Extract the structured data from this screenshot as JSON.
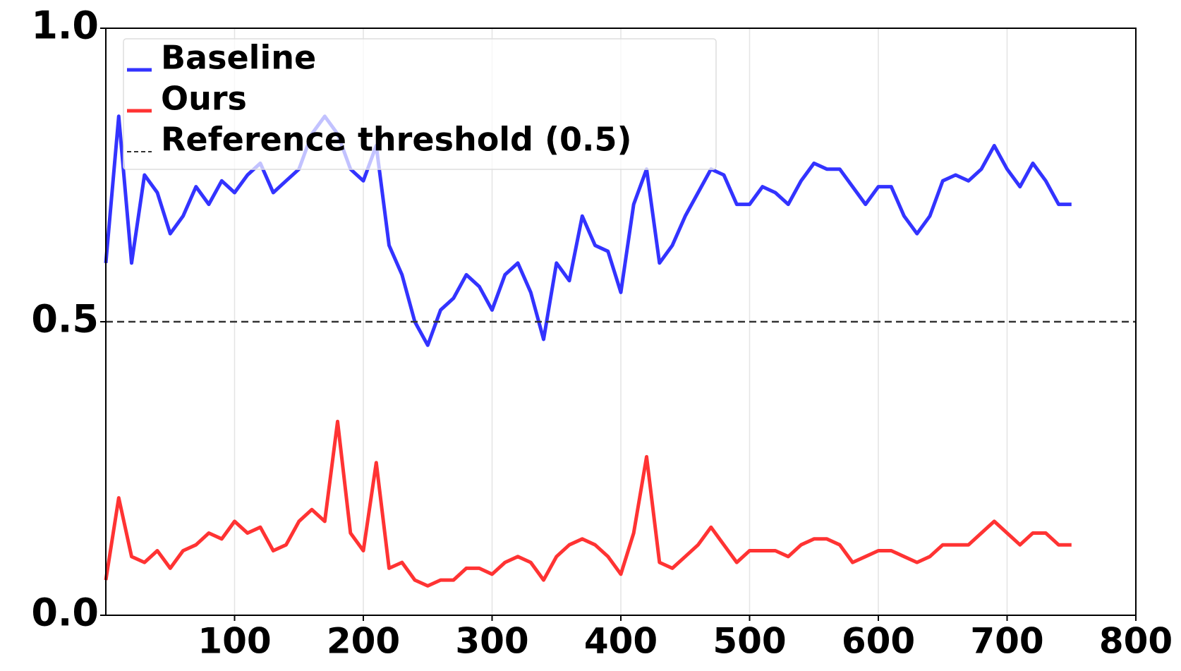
{
  "chart_data": {
    "type": "line",
    "x": [
      0,
      10,
      20,
      30,
      40,
      50,
      60,
      70,
      80,
      90,
      100,
      110,
      120,
      130,
      140,
      150,
      160,
      170,
      180,
      190,
      200,
      210,
      220,
      230,
      240,
      250,
      260,
      270,
      280,
      290,
      300,
      310,
      320,
      330,
      340,
      350,
      360,
      370,
      380,
      390,
      400,
      410,
      420,
      430,
      440,
      450,
      460,
      470,
      480,
      490,
      500,
      510,
      520,
      530,
      540,
      550,
      560,
      570,
      580,
      590,
      600,
      610,
      620,
      630,
      640,
      650,
      660,
      670,
      680,
      690,
      700,
      710,
      720,
      730,
      740,
      750
    ],
    "series": [
      {
        "name": "Baseline",
        "color": "#3333ff",
        "values": [
          0.6,
          0.85,
          0.6,
          0.75,
          0.72,
          0.65,
          0.68,
          0.73,
          0.7,
          0.74,
          0.72,
          0.75,
          0.77,
          0.72,
          0.74,
          0.76,
          0.82,
          0.85,
          0.82,
          0.76,
          0.74,
          0.8,
          0.63,
          0.58,
          0.5,
          0.46,
          0.52,
          0.54,
          0.58,
          0.56,
          0.52,
          0.58,
          0.6,
          0.55,
          0.47,
          0.6,
          0.57,
          0.68,
          0.63,
          0.62,
          0.55,
          0.7,
          0.76,
          0.6,
          0.63,
          0.68,
          0.72,
          0.76,
          0.75,
          0.7,
          0.7,
          0.73,
          0.72,
          0.7,
          0.74,
          0.77,
          0.76,
          0.76,
          0.73,
          0.7,
          0.73,
          0.73,
          0.68,
          0.65,
          0.68,
          0.74,
          0.75,
          0.74,
          0.76,
          0.8,
          0.76,
          0.73,
          0.77,
          0.74,
          0.7,
          0.7
        ]
      },
      {
        "name": "Ours",
        "color": "#ff3333",
        "values": [
          0.06,
          0.2,
          0.1,
          0.09,
          0.11,
          0.08,
          0.11,
          0.12,
          0.14,
          0.13,
          0.16,
          0.14,
          0.15,
          0.11,
          0.12,
          0.16,
          0.18,
          0.16,
          0.33,
          0.14,
          0.11,
          0.26,
          0.08,
          0.09,
          0.06,
          0.05,
          0.06,
          0.06,
          0.08,
          0.08,
          0.07,
          0.09,
          0.1,
          0.09,
          0.06,
          0.1,
          0.12,
          0.13,
          0.12,
          0.1,
          0.07,
          0.14,
          0.27,
          0.09,
          0.08,
          0.1,
          0.12,
          0.15,
          0.12,
          0.09,
          0.11,
          0.11,
          0.11,
          0.1,
          0.12,
          0.13,
          0.13,
          0.12,
          0.09,
          0.1,
          0.11,
          0.11,
          0.1,
          0.09,
          0.1,
          0.12,
          0.12,
          0.12,
          0.14,
          0.16,
          0.14,
          0.12,
          0.14,
          0.14,
          0.12,
          0.12
        ]
      }
    ],
    "reference_line": {
      "name": "Reference threshold (0.5)",
      "value": 0.5,
      "color": "#333333"
    },
    "xlim": [
      0,
      800
    ],
    "xticks": [
      100,
      200,
      300,
      400,
      500,
      600,
      700,
      800
    ],
    "ylim": [
      0,
      1
    ],
    "yticks": [
      {
        "value": 0,
        "label": "0.0"
      },
      0.5,
      {
        "value": 1,
        "label": "1.0"
      }
    ],
    "grid": true,
    "legend": "upper left"
  }
}
